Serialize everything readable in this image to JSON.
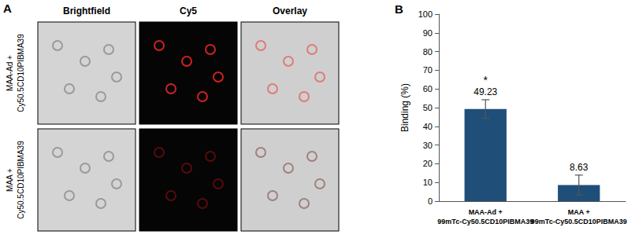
{
  "panel_a": {
    "label": "A",
    "columns": [
      "Brightfield",
      "Cy5",
      "Overlay"
    ],
    "rows": [
      [
        "MAA-Ad +",
        "Cy50.5CD10PIBMA39"
      ],
      [
        "MAA +",
        "Cy50.5CD10PIBMA39"
      ]
    ]
  },
  "chart_data": {
    "type": "bar",
    "panel_label": "B",
    "categories": [
      "MAA-Ad +\n99mTc-Cy50.5CD10PIBMA39",
      "MAA +\n99mTc-Cy50.5CD10PIBMA39"
    ],
    "values": [
      49.23,
      8.63
    ],
    "errors": [
      5.0,
      5.3
    ],
    "color": "#1f4e79",
    "y_label": "Binding (%)",
    "ylim": [
      0,
      100
    ],
    "yticks": [
      0,
      10,
      20,
      30,
      40,
      50,
      60,
      70,
      80,
      90,
      100
    ],
    "data_labels": true,
    "grid": false,
    "annotations": [
      {
        "text": "*",
        "category": "MAA-Ad +\n99mTc-Cy50.5CD10PIBMA39"
      }
    ]
  }
}
